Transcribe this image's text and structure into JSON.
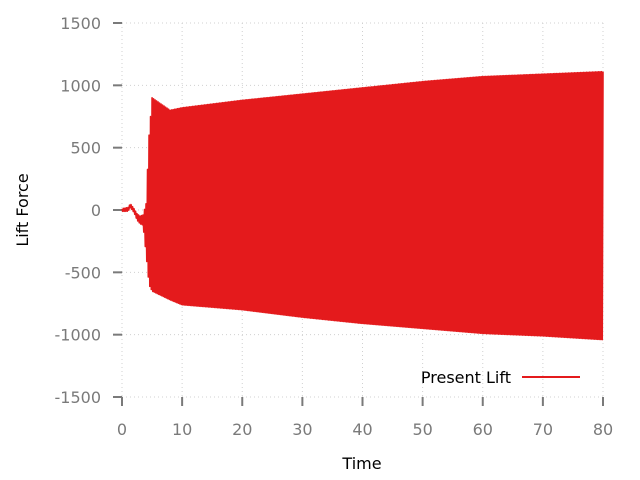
{
  "chart_data": {
    "type": "line",
    "xlabel": "Time",
    "ylabel": "Lift Force",
    "xlim": [
      0,
      80
    ],
    "ylim": [
      -1500,
      1500
    ],
    "x_ticks": [
      "0",
      "10",
      "20",
      "30",
      "40",
      "50",
      "60",
      "70",
      "80"
    ],
    "y_ticks": [
      "1500",
      "1000",
      "500",
      "0",
      "-500",
      "-1000",
      "-1500"
    ],
    "grid": true,
    "legend_position": "bottom-right",
    "series": [
      {
        "name": "Present Lift",
        "color": "#e41a1c",
        "oscillation_period": 0.25,
        "envelope": {
          "time": [
            0,
            1.0,
            1.4,
            2.0,
            2.5,
            3.0,
            3.5,
            4.0,
            4.5,
            5,
            8,
            10,
            20,
            30,
            40,
            50,
            60,
            70,
            80
          ],
          "upper": [
            10,
            20,
            50,
            10,
            -30,
            -50,
            -40,
            50,
            600,
            900,
            800,
            820,
            880,
            930,
            980,
            1030,
            1070,
            1090,
            1110
          ],
          "lower": [
            -10,
            -10,
            20,
            -20,
            -80,
            -110,
            -120,
            -350,
            -600,
            -650,
            -720,
            -760,
            -800,
            -860,
            -910,
            -950,
            -990,
            -1010,
            -1040
          ]
        }
      }
    ]
  }
}
